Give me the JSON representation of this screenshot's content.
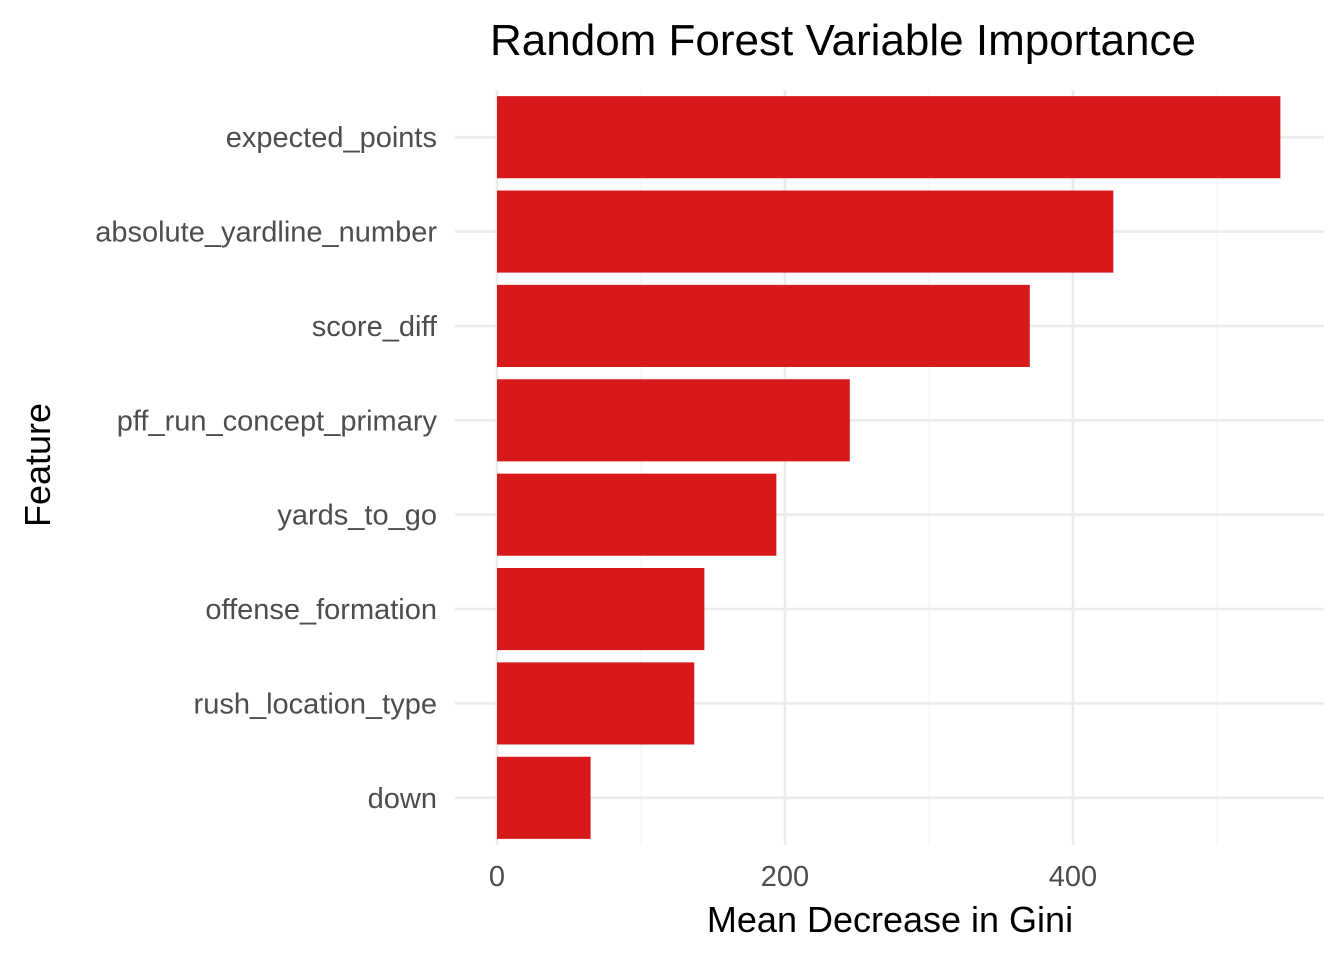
{
  "chart_data": {
    "type": "bar",
    "orientation": "horizontal",
    "title": "Random Forest Variable Importance",
    "xlabel": "Mean Decrease in Gini",
    "ylabel": "Feature",
    "categories": [
      "expected_points",
      "absolute_yardline_number",
      "score_diff",
      "pff_run_concept_primary",
      "yards_to_go",
      "offense_formation",
      "rush_location_type",
      "down"
    ],
    "values": [
      544,
      428,
      370,
      245,
      194,
      144,
      137,
      65
    ],
    "xlim": [
      0,
      560
    ],
    "x_ticks": [
      0,
      200,
      400
    ],
    "bar_color": "#d7191c",
    "grid": true,
    "legend": "none"
  }
}
